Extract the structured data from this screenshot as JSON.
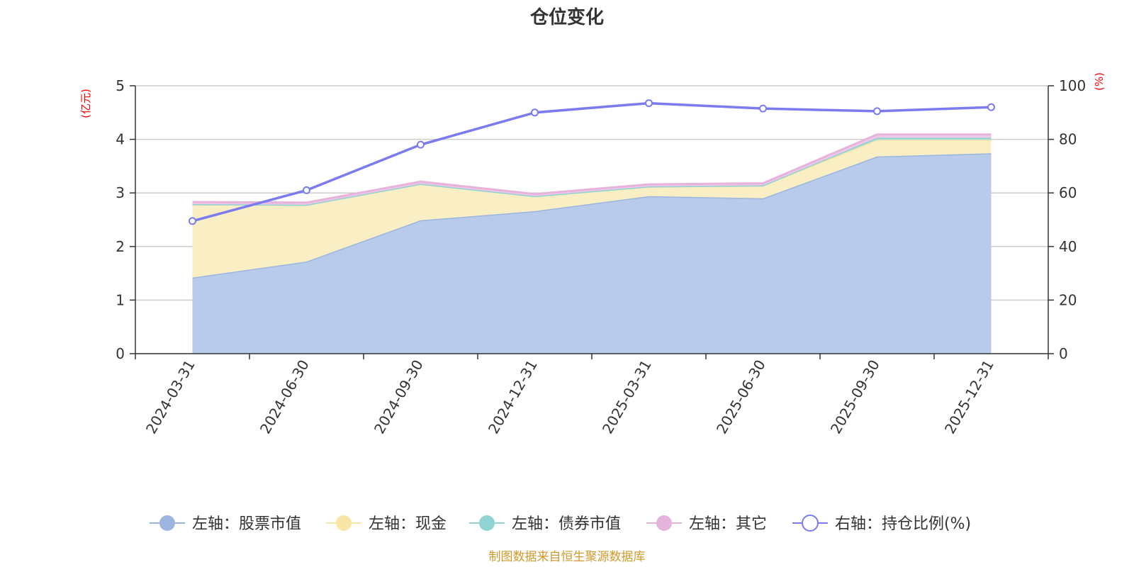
{
  "chart_data": {
    "type": "area",
    "title": "仓位变化",
    "categories": [
      "2024-03-31",
      "2024-06-30",
      "2024-09-30",
      "2024-12-31",
      "2025-03-31",
      "2025-06-30",
      "2025-09-30",
      "2025-12-31"
    ],
    "left_axis": {
      "unit": "(亿元)",
      "ylim": [
        0,
        5
      ],
      "ticks": [
        "0",
        "1",
        "2",
        "3",
        "4",
        "5"
      ]
    },
    "right_axis": {
      "unit": "(%)",
      "ylim": [
        0,
        100
      ],
      "ticks": [
        "0",
        "20",
        "40",
        "60",
        "80",
        "100"
      ]
    },
    "grid": true,
    "legend_position": "bottom",
    "series": [
      {
        "name": "左轴：股票市值",
        "axis": "left",
        "stack": true,
        "color": "#9bb5e0",
        "fill": "#b8cbea",
        "values": [
          1.42,
          1.72,
          2.49,
          2.66,
          2.94,
          2.9,
          3.68,
          3.74
        ]
      },
      {
        "name": "左轴：现金",
        "axis": "left",
        "stack": true,
        "color": "#f8e6a8",
        "fill": "#f9eec4",
        "values": [
          1.37,
          1.06,
          0.68,
          0.28,
          0.18,
          0.24,
          0.31,
          0.25
        ]
      },
      {
        "name": "左轴：债券市值",
        "axis": "left",
        "stack": true,
        "color": "#8fd3d3",
        "fill": "#a8dcd8",
        "values": [
          0,
          0,
          0,
          0,
          0,
          0,
          0.04,
          0.04
        ]
      },
      {
        "name": "左轴：其它",
        "axis": "left",
        "stack": true,
        "color": "#e6b3dc",
        "fill": "#f0c8e6",
        "values": [
          0.04,
          0.04,
          0.04,
          0.04,
          0.04,
          0.04,
          0.06,
          0.06
        ]
      },
      {
        "name": "右轴：持仓比例(%)",
        "axis": "right",
        "stack": false,
        "color": "#7b7bef",
        "values": [
          49.5,
          61.0,
          78.0,
          90.0,
          93.5,
          91.5,
          90.5,
          92.0
        ]
      }
    ],
    "source_note": "制图数据来自恒生聚源数据库"
  }
}
